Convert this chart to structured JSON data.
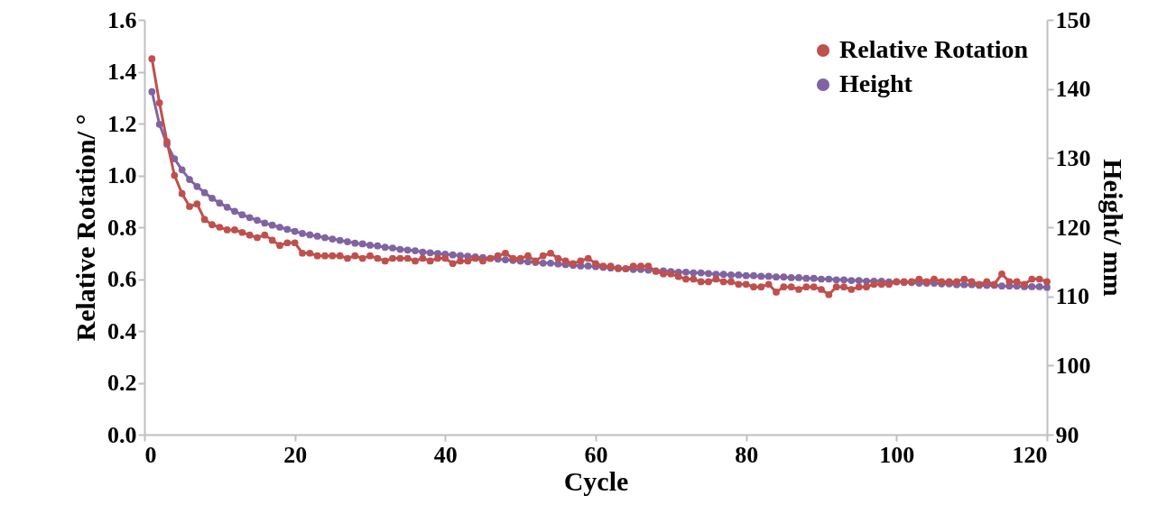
{
  "chart_data": {
    "type": "line",
    "xlabel": "Cycle",
    "ylabel": "Relative Rotation/ °",
    "y2label": "Height/ mm",
    "x": [
      1,
      2,
      3,
      4,
      5,
      6,
      7,
      8,
      9,
      10,
      11,
      12,
      13,
      14,
      15,
      16,
      17,
      18,
      19,
      20,
      21,
      22,
      23,
      24,
      25,
      26,
      27,
      28,
      29,
      30,
      31,
      32,
      33,
      34,
      35,
      36,
      37,
      38,
      39,
      40,
      41,
      42,
      43,
      44,
      45,
      46,
      47,
      48,
      49,
      50,
      51,
      52,
      53,
      54,
      55,
      56,
      57,
      58,
      59,
      60,
      61,
      62,
      63,
      64,
      65,
      66,
      67,
      68,
      69,
      70,
      71,
      72,
      73,
      74,
      75,
      76,
      77,
      78,
      79,
      80,
      81,
      82,
      83,
      84,
      85,
      86,
      87,
      88,
      89,
      90,
      91,
      92,
      93,
      94,
      95,
      96,
      97,
      98,
      99,
      100,
      101,
      102,
      103,
      104,
      105,
      106,
      107,
      108,
      109,
      110,
      111,
      112,
      113,
      114,
      115,
      116,
      117,
      118,
      119,
      120
    ],
    "series": [
      {
        "name": "Relative Rotation",
        "color": "#c0504d",
        "values": [
          1.45,
          1.28,
          1.13,
          1.0,
          0.93,
          0.88,
          0.89,
          0.83,
          0.81,
          0.8,
          0.79,
          0.79,
          0.78,
          0.77,
          0.76,
          0.77,
          0.75,
          0.73,
          0.74,
          0.74,
          0.7,
          0.7,
          0.69,
          0.69,
          0.69,
          0.69,
          0.68,
          0.69,
          0.68,
          0.69,
          0.68,
          0.67,
          0.68,
          0.68,
          0.68,
          0.67,
          0.68,
          0.67,
          0.68,
          0.68,
          0.66,
          0.67,
          0.67,
          0.68,
          0.67,
          0.68,
          0.69,
          0.7,
          0.68,
          0.68,
          0.69,
          0.67,
          0.69,
          0.7,
          0.68,
          0.67,
          0.66,
          0.67,
          0.68,
          0.66,
          0.65,
          0.65,
          0.64,
          0.64,
          0.65,
          0.65,
          0.65,
          0.63,
          0.62,
          0.62,
          0.61,
          0.6,
          0.6,
          0.59,
          0.59,
          0.6,
          0.59,
          0.59,
          0.58,
          0.58,
          0.57,
          0.57,
          0.58,
          0.55,
          0.57,
          0.57,
          0.56,
          0.57,
          0.57,
          0.56,
          0.54,
          0.57,
          0.57,
          0.56,
          0.57,
          0.57,
          0.58,
          0.58,
          0.58,
          0.59,
          0.59,
          0.59,
          0.6,
          0.59,
          0.6,
          0.59,
          0.59,
          0.59,
          0.6,
          0.59,
          0.58,
          0.59,
          0.58,
          0.62,
          0.59,
          0.59,
          0.58,
          0.6,
          0.6,
          0.59
        ]
      },
      {
        "name": "Height",
        "color": "#8064a2",
        "axis": "y2",
        "values": [
          139.6,
          134.9,
          132.0,
          129.9,
          128.3,
          126.9,
          125.9,
          125.0,
          124.2,
          123.5,
          122.9,
          122.3,
          121.8,
          121.4,
          121.0,
          120.6,
          120.3,
          120.0,
          119.7,
          119.4,
          119.1,
          118.9,
          118.7,
          118.5,
          118.3,
          118.1,
          117.9,
          117.7,
          117.6,
          117.4,
          117.3,
          117.1,
          117.0,
          116.8,
          116.7,
          116.6,
          116.4,
          116.3,
          116.2,
          116.1,
          116.0,
          115.9,
          115.8,
          115.7,
          115.6,
          115.5,
          115.4,
          115.3,
          115.2,
          115.1,
          115.0,
          114.9,
          114.8,
          114.8,
          114.7,
          114.6,
          114.5,
          114.4,
          114.4,
          114.3,
          114.2,
          114.1,
          114.1,
          114.0,
          113.9,
          113.9,
          113.8,
          113.7,
          113.7,
          113.6,
          113.5,
          113.5,
          113.4,
          113.4,
          113.3,
          113.2,
          113.2,
          113.1,
          113.1,
          113.0,
          113.0,
          112.9,
          112.9,
          112.8,
          112.8,
          112.7,
          112.7,
          112.6,
          112.6,
          112.5,
          112.5,
          112.4,
          112.4,
          112.3,
          112.3,
          112.2,
          112.2,
          112.2,
          112.1,
          112.1,
          112.0,
          112.0,
          111.9,
          111.9,
          111.9,
          111.8,
          111.8,
          111.7,
          111.7,
          111.7,
          111.6,
          111.6,
          111.6,
          111.5,
          111.5,
          111.5,
          111.4,
          111.4,
          111.4,
          111.3
        ]
      }
    ],
    "xlim": [
      0,
      120
    ],
    "xticks": [
      0,
      20,
      40,
      60,
      80,
      100,
      120
    ],
    "ylim": [
      0,
      1.6
    ],
    "yticks": [
      {
        "value": 0,
        "label": "0.0"
      },
      0.2,
      0.4,
      0.6,
      0.8,
      {
        "value": 1,
        "label": "1.0"
      },
      1.2,
      1.4,
      1.6
    ],
    "y2lim": [
      90,
      150
    ],
    "y2ticks": [
      90,
      100,
      110,
      120,
      130,
      140,
      150
    ],
    "marker": "circle",
    "line_style": "solid",
    "legend": "top right"
  }
}
